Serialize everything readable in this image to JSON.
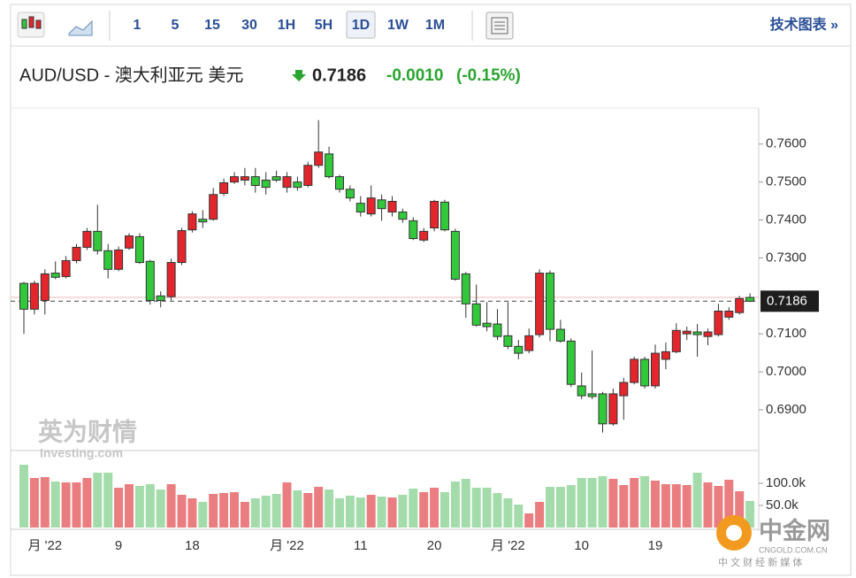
{
  "toolbar": {
    "intervals": [
      "1",
      "5",
      "15",
      "30",
      "1H",
      "5H",
      "1D",
      "1W",
      "1M"
    ],
    "selected": "1D",
    "link": "技术图表 »"
  },
  "header": {
    "pair": "AUD/USD - 澳大利亚元 美元",
    "price": 0.7186,
    "change": {
      "value": -0.001,
      "label": "-0.0010"
    },
    "change_pct": {
      "value": -0.15,
      "label": "(-0.15%)"
    }
  },
  "watermarks": {
    "brand": "英为财情",
    "brand_en": "Investing.com",
    "logo": "中金网",
    "logo_url": "CNGOLD.COM.CN",
    "logo_tagline": "中 文 财 经 新 媒 体"
  },
  "chart_data": {
    "type": "candlestick",
    "categories": [
      null,
      null,
      "月 '22",
      null,
      null,
      null,
      null,
      null,
      null,
      "9",
      null,
      null,
      null,
      null,
      null,
      null,
      "18",
      null,
      null,
      null,
      null,
      null,
      null,
      null,
      null,
      "月 '22",
      null,
      null,
      null,
      null,
      null,
      null,
      "11",
      null,
      null,
      null,
      null,
      null,
      null,
      "20",
      null,
      null,
      null,
      null,
      null,
      null,
      "月 '22",
      null,
      null,
      null,
      null,
      null,
      null,
      "10",
      null,
      null,
      null,
      null,
      null,
      null,
      "19",
      null,
      null,
      null,
      null,
      null,
      null,
      null,
      null,
      null
    ],
    "open": [
      0.7233,
      0.7165,
      0.7188,
      0.726,
      0.7251,
      0.7293,
      0.7328,
      0.737,
      0.7319,
      0.727,
      0.7326,
      0.7356,
      0.7291,
      0.72,
      0.7198,
      0.7288,
      0.7374,
      0.7402,
      0.7402,
      0.747,
      0.75,
      0.7505,
      0.7514,
      0.7505,
      0.7514,
      0.7486,
      0.75,
      0.7491,
      0.7544,
      0.7574,
      0.7514,
      0.7481,
      0.7444,
      0.7416,
      0.7453,
      0.7421,
      0.7421,
      0.7398,
      0.7347,
      0.7379,
      0.7447,
      0.737,
      0.7258,
      0.7179,
      0.7128,
      0.7126,
      0.7095,
      0.7067,
      0.7056,
      0.7098,
      0.726,
      0.7112,
      0.7081,
      0.6963,
      0.6942,
      0.6942,
      0.6863,
      0.6937,
      0.6972,
      0.7033,
      0.6963,
      0.7033,
      0.7053,
      0.71,
      0.7105,
      0.7093,
      0.7098,
      0.7144,
      0.7156,
      0.7196
    ],
    "high": [
      0.7237,
      0.724,
      0.727,
      0.7291,
      0.7305,
      0.7337,
      0.7379,
      0.744,
      0.7337,
      0.733,
      0.7365,
      0.7365,
      0.7295,
      0.7212,
      0.7298,
      0.7379,
      0.7423,
      0.7426,
      0.7484,
      0.7509,
      0.7526,
      0.7537,
      0.7537,
      0.7526,
      0.753,
      0.7526,
      0.7514,
      0.7553,
      0.7663,
      0.7593,
      0.7519,
      0.7491,
      0.7463,
      0.7491,
      0.7467,
      0.7463,
      0.743,
      0.7407,
      0.7379,
      0.7453,
      0.7453,
      0.7377,
      0.7263,
      0.723,
      0.7184,
      0.7165,
      0.7184,
      0.7084,
      0.7114,
      0.727,
      0.7267,
      0.7137,
      0.7088,
      0.6998,
      0.7056,
      0.6947,
      0.6956,
      0.6984,
      0.704,
      0.704,
      0.7072,
      0.7077,
      0.7128,
      0.7119,
      0.7126,
      0.7114,
      0.7179,
      0.717,
      0.72,
      0.7207
    ],
    "low": [
      0.71,
      0.7151,
      0.7151,
      0.7244,
      0.7246,
      0.7286,
      0.7321,
      0.7309,
      0.7246,
      0.7265,
      0.7321,
      0.7284,
      0.7177,
      0.717,
      0.7188,
      0.7281,
      0.7367,
      0.7379,
      0.7398,
      0.7463,
      0.7495,
      0.7491,
      0.7472,
      0.7467,
      0.75,
      0.7472,
      0.7477,
      0.7486,
      0.7537,
      0.7509,
      0.7472,
      0.7449,
      0.7409,
      0.7409,
      0.7398,
      0.7409,
      0.7393,
      0.7347,
      0.7342,
      0.737,
      0.737,
      0.724,
      0.7142,
      0.7119,
      0.7107,
      0.7084,
      0.706,
      0.7033,
      0.7049,
      0.7091,
      0.7081,
      0.7077,
      0.696,
      0.6928,
      0.6928,
      0.684,
      0.6858,
      0.6874,
      0.6967,
      0.6956,
      0.6956,
      0.7007,
      0.7049,
      0.7084,
      0.704,
      0.707,
      0.7093,
      0.7137,
      0.7151,
      0.7184
    ],
    "close": [
      0.7165,
      0.7233,
      0.7258,
      0.7249,
      0.7293,
      0.7328,
      0.737,
      0.7319,
      0.727,
      0.7321,
      0.7358,
      0.7288,
      0.7188,
      0.7188,
      0.7288,
      0.7372,
      0.7416,
      0.7395,
      0.7467,
      0.7498,
      0.7514,
      0.7514,
      0.7491,
      0.7486,
      0.7505,
      0.7514,
      0.7486,
      0.7544,
      0.7579,
      0.7514,
      0.7481,
      0.7458,
      0.7421,
      0.7458,
      0.743,
      0.7449,
      0.7402,
      0.7351,
      0.737,
      0.7449,
      0.7374,
      0.7244,
      0.7179,
      0.7123,
      0.7119,
      0.7093,
      0.7067,
      0.7049,
      0.7095,
      0.726,
      0.7112,
      0.7081,
      0.6967,
      0.6937,
      0.6935,
      0.6863,
      0.6942,
      0.6972,
      0.7033,
      0.6963,
      0.7049,
      0.7053,
      0.7109,
      0.7107,
      0.7098,
      0.7105,
      0.716,
      0.716,
      0.7193,
      0.7186
    ],
    "volume": [
      142000,
      112000,
      114000,
      104000,
      102000,
      102000,
      112000,
      124000,
      124000,
      90000,
      98000,
      94000,
      98000,
      86000,
      98000,
      74000,
      66000,
      58000,
      76000,
      78000,
      80000,
      58000,
      66000,
      72000,
      76000,
      102000,
      84000,
      78000,
      92000,
      86000,
      66000,
      72000,
      68000,
      74000,
      70000,
      68000,
      74000,
      88000,
      80000,
      90000,
      80000,
      104000,
      110000,
      90000,
      90000,
      78000,
      66000,
      52000,
      32000,
      58000,
      92000,
      92000,
      96000,
      112000,
      112000,
      116000,
      110000,
      96000,
      112000,
      116000,
      106000,
      98000,
      98000,
      96000,
      124000,
      102000,
      94000,
      108000,
      82000,
      60000
    ],
    "ylim": [
      0.6795,
      0.7695
    ],
    "yticks": [
      {
        "value": 0.69,
        "label": "0.6900"
      },
      {
        "value": 0.7,
        "label": "0.7000"
      },
      {
        "value": 0.71,
        "label": "0.7100"
      },
      {
        "value": 0.73,
        "label": "0.7300"
      },
      {
        "value": 0.74,
        "label": "0.7400"
      },
      {
        "value": 0.75,
        "label": "0.7500"
      },
      {
        "value": 0.76,
        "label": "0.7600"
      }
    ],
    "last_price": 0.7186,
    "prev_close": 0.7196,
    "volume_ylim": [
      0,
      172000
    ],
    "volume_yticks": [
      {
        "value": 50000,
        "label": "50.0k"
      },
      {
        "value": 100000,
        "label": "100.0k"
      }
    ],
    "up_color": "#e3262c",
    "down_color": "#33c83b",
    "volume_up_color": "#ea7d7f",
    "volume_down_color": "#a3dcaa"
  }
}
